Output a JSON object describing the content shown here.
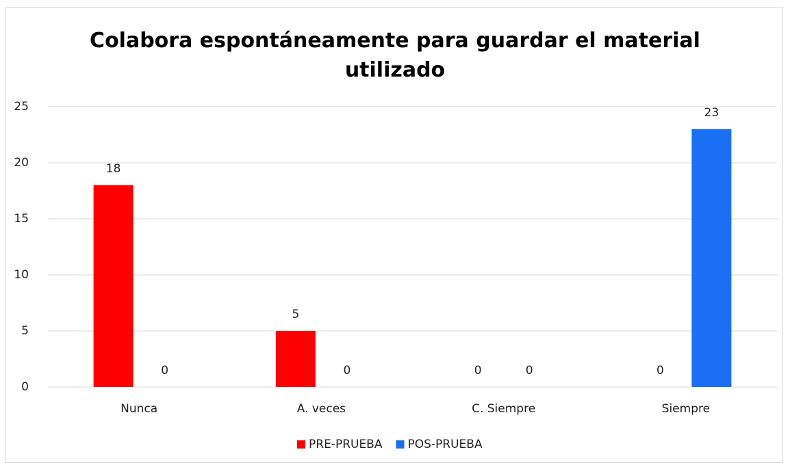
{
  "chart_data": {
    "type": "bar",
    "title": "Colabora espontáneamente para guardar el material utilizado",
    "categories": [
      "Nunca",
      "A. veces",
      "C. Siempre",
      "Siempre"
    ],
    "series": [
      {
        "name": "PRE-PRUEBA",
        "color": "#ff0000",
        "values": [
          18,
          5,
          0,
          0
        ]
      },
      {
        "name": "POS-PRUEBA",
        "color": "#1a6ff5",
        "values": [
          0,
          0,
          0,
          23
        ]
      }
    ],
    "ylim": [
      0,
      25
    ],
    "yticks": [
      0,
      5,
      10,
      15,
      20,
      25
    ],
    "grid": true,
    "legend": "bottom"
  }
}
